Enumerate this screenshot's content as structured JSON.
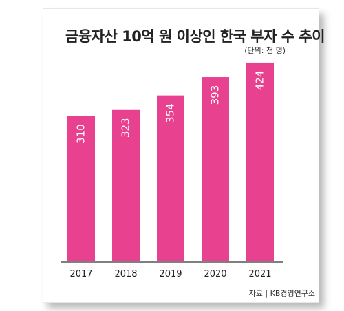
{
  "chart_data": {
    "type": "bar",
    "title": "금융자산 10억 원 이상인 한국 부자 수 추이",
    "unit": "(단위: 천 명)",
    "categories": [
      "2017",
      "2018",
      "2019",
      "2020",
      "2021"
    ],
    "values": [
      310,
      323,
      354,
      393,
      424
    ],
    "ylim": [
      0,
      440
    ],
    "bar_color": "#e8418f",
    "grid": false,
    "source": "자료 | KB경영연구소"
  }
}
